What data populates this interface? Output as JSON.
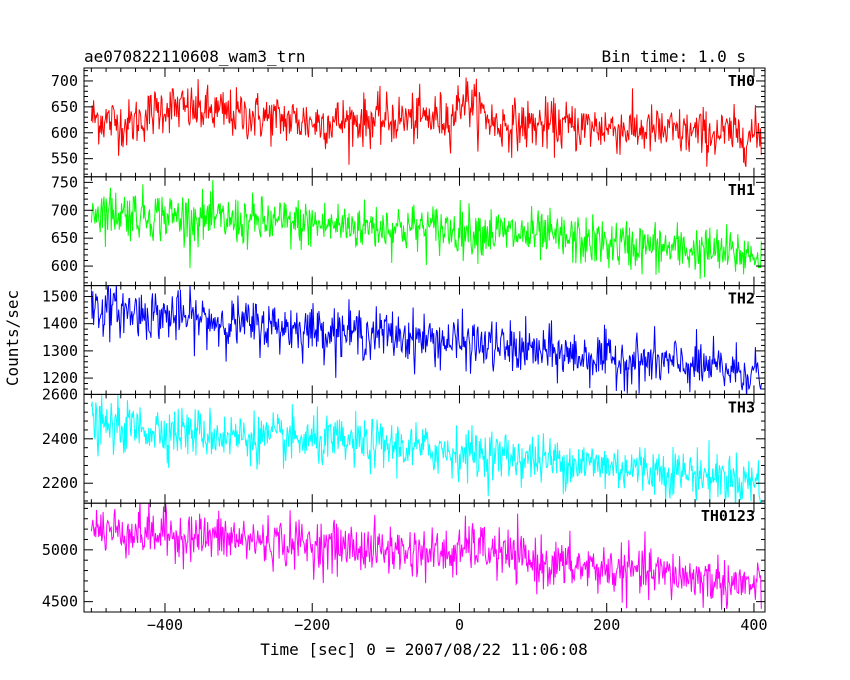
{
  "title_left": "ae070822110608_wam3_trn",
  "title_right": "Bin time: 1.0 s",
  "chart_data": {
    "type": "line",
    "xlabel": "Time [sec] 0 = 2007/08/22 11:06:08",
    "ylabel": "Counts/sec",
    "xlim": [
      -510,
      415
    ],
    "x_ticks": [
      -400,
      -200,
      0,
      200,
      400
    ],
    "x_tick_labels": [
      "−400",
      "−200",
      "0",
      "200",
      "400"
    ],
    "grid": false,
    "panels": [
      {
        "name": "TH0",
        "color": "#ff0000",
        "ylim": [
          515,
          725
        ],
        "y_ticks": [
          550,
          600,
          650,
          700
        ],
        "y_tick_labels": [
          "550",
          "600",
          "650",
          "700"
        ],
        "x": [
          -500,
          -450,
          -400,
          -300,
          -200,
          -100,
          -10,
          5,
          50,
          100,
          200,
          300,
          400,
          410
        ],
        "y": [
          630,
          615,
          650,
          635,
          620,
          625,
          630,
          670,
          615,
          615,
          610,
          600,
          595,
          595
        ]
      },
      {
        "name": "TH1",
        "color": "#00ff00",
        "ylim": [
          565,
          760
        ],
        "y_ticks": [
          600,
          650,
          700,
          750
        ],
        "y_tick_labels": [
          "600",
          "650",
          "700",
          "750"
        ],
        "x": [
          -500,
          -400,
          -300,
          -200,
          -100,
          0,
          100,
          200,
          300,
          400,
          410
        ],
        "y": [
          700,
          690,
          680,
          675,
          670,
          665,
          655,
          640,
          630,
          620,
          620
        ]
      },
      {
        "name": "TH2",
        "color": "#0000ff",
        "ylim": [
          1140,
          1540
        ],
        "y_ticks": [
          1200,
          1300,
          1400,
          1500
        ],
        "y_tick_labels": [
          "1200",
          "1300",
          "1400",
          "1500"
        ],
        "x": [
          -500,
          -400,
          -300,
          -200,
          -100,
          0,
          100,
          200,
          300,
          400,
          410
        ],
        "y": [
          1460,
          1430,
          1400,
          1380,
          1360,
          1330,
          1300,
          1270,
          1250,
          1220,
          1215
        ]
      },
      {
        "name": "TH3",
        "color": "#00ffff",
        "ylim": [
          2110,
          2600
        ],
        "y_ticks": [
          2200,
          2400,
          2600
        ],
        "y_tick_labels": [
          "2200",
          "2400",
          "2600"
        ],
        "x": [
          -500,
          -400,
          -300,
          -200,
          -100,
          0,
          100,
          200,
          300,
          400,
          410
        ],
        "y": [
          2460,
          2440,
          2410,
          2390,
          2370,
          2340,
          2310,
          2280,
          2250,
          2210,
          2205
        ]
      },
      {
        "name": "TH0123",
        "color": "#ff00ff",
        "ylim": [
          4400,
          5450
        ],
        "y_ticks": [
          4500,
          5000
        ],
        "y_tick_labels": [
          "4500",
          "5000"
        ],
        "x": [
          -500,
          -400,
          -300,
          -200,
          -100,
          0,
          10,
          100,
          200,
          300,
          400,
          410
        ],
        "y": [
          5200,
          5150,
          5100,
          5050,
          5000,
          4950,
          5050,
          4880,
          4810,
          4750,
          4650,
          4640
        ]
      }
    ]
  }
}
